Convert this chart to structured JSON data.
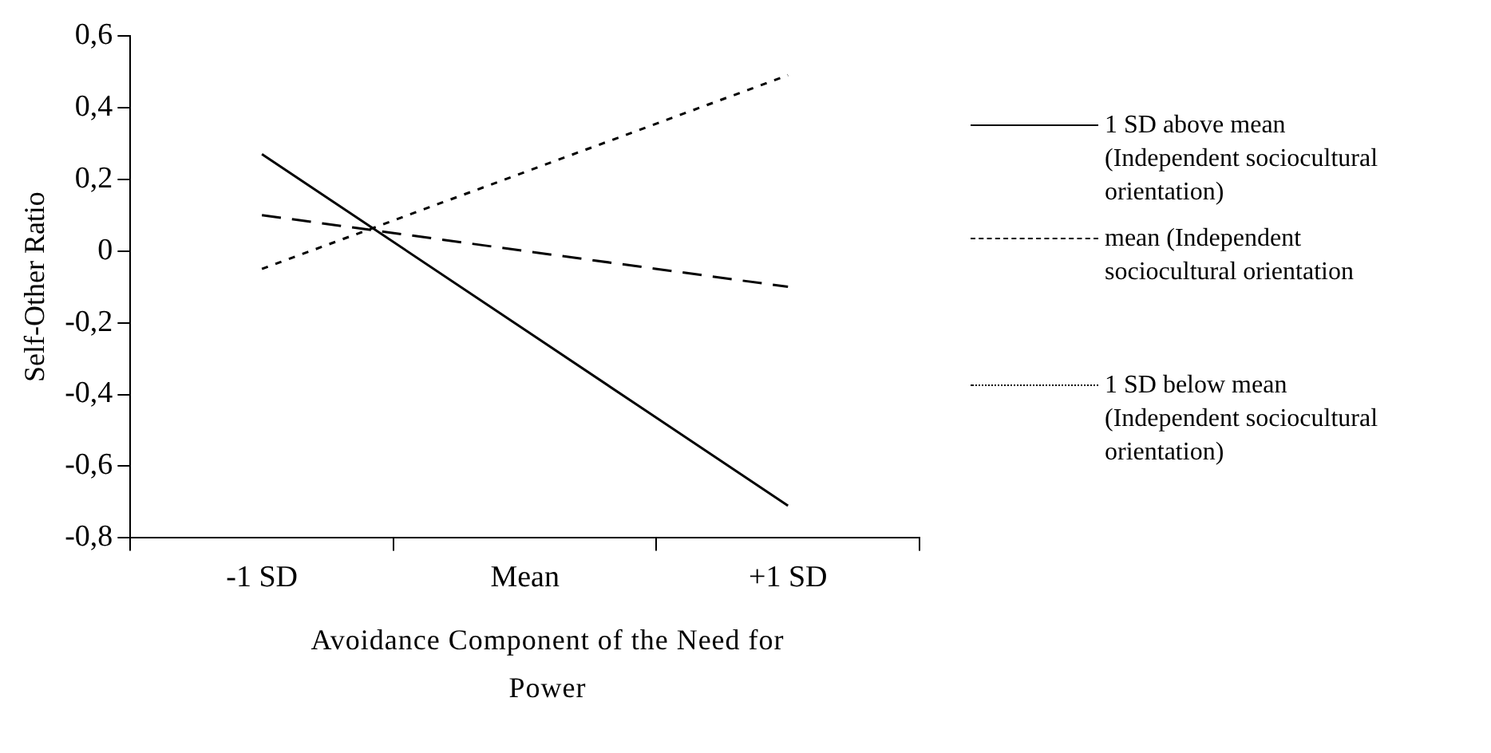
{
  "chart_data": {
    "type": "line",
    "xlabel": "Avoidance Component of the Need for Power",
    "ylabel": "Self-Other Ratio",
    "categories": [
      "-1 SD",
      "Mean",
      "+1 SD"
    ],
    "series": [
      {
        "name": "1 SD above mean (Independent sociocultural orientation)",
        "color": "#000000",
        "line_style": "solid",
        "values": [
          0.27,
          -0.22,
          -0.71
        ]
      },
      {
        "name": "mean (Independent sociocultural orientation",
        "color": "#000000",
        "line_style": "dashed",
        "values": [
          0.1,
          0,
          -0.1
        ]
      },
      {
        "name": "1 SD below mean (Independent sociocultural orientation)",
        "color": "#000000",
        "line_style": "dotted",
        "values": [
          -0.05,
          0.22,
          0.49
        ]
      }
    ],
    "ylim": [
      -0.8,
      0.6
    ],
    "yticks": [
      {
        "value": -0.8,
        "label": "-0,8"
      },
      {
        "value": -0.6,
        "label": "-0,6"
      },
      {
        "value": -0.4,
        "label": "-0,4"
      },
      {
        "value": -0.2,
        "label": "-0,2"
      },
      {
        "value": 0,
        "label": "0"
      },
      {
        "value": 0.2,
        "label": "0,2"
      },
      {
        "value": 0.4,
        "label": "0,4"
      },
      {
        "value": 0.6,
        "label": "0,6"
      }
    ],
    "grid": false,
    "legend": "right",
    "marker": "none"
  }
}
